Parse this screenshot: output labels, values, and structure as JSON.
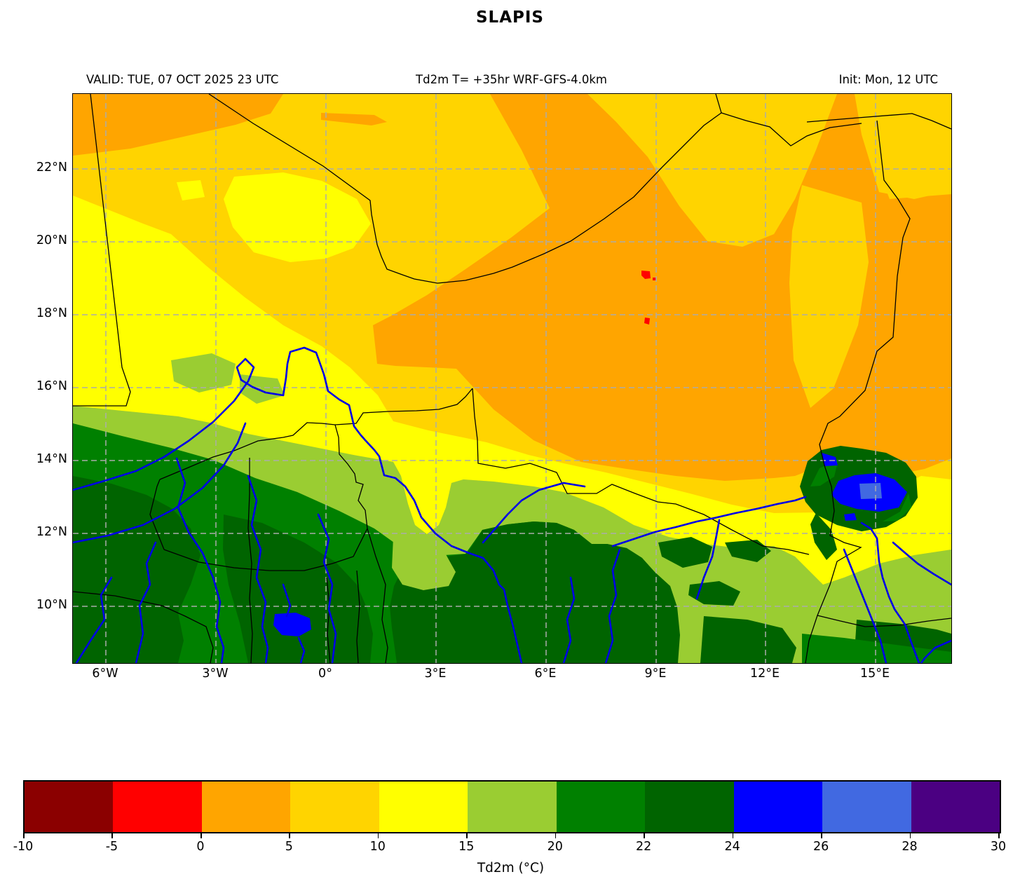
{
  "title": "SLAPIS",
  "header": {
    "valid": "VALID: TUE, 07 OCT 2025 23 UTC",
    "product": "Td2m T= +35hr WRF-GFS-4.0km",
    "init": "Init: Mon, 12 UTC"
  },
  "map": {
    "x_ticks": [
      "6°W",
      "3°W",
      "0°",
      "3°E",
      "6°E",
      "9°E",
      "12°E",
      "15°E"
    ],
    "y_ticks": [
      "22°N",
      "20°N",
      "18°N",
      "16°N",
      "14°N",
      "12°N",
      "10°N"
    ],
    "grid_color": "#ABABAB",
    "border_color": "#000000",
    "river_color": "#0000E6"
  },
  "colorbar": {
    "label": "Td2m (°C)",
    "tick_labels": [
      "-10",
      "-5",
      "0",
      "5",
      "10",
      "15",
      "20",
      "22",
      "24",
      "26",
      "28",
      "30"
    ],
    "segments": [
      {
        "from": -10,
        "to": -5,
        "color": "#8B0000"
      },
      {
        "from": -5,
        "to": 0,
        "color": "#FF0000"
      },
      {
        "from": 0,
        "to": 5,
        "color": "#FFA500"
      },
      {
        "from": 5,
        "to": 10,
        "color": "#FFD400"
      },
      {
        "from": 10,
        "to": 15,
        "color": "#FFFF00"
      },
      {
        "from": 15,
        "to": 20,
        "color": "#9ACD32"
      },
      {
        "from": 20,
        "to": 22,
        "color": "#008000"
      },
      {
        "from": 22,
        "to": 24,
        "color": "#006400"
      },
      {
        "from": 24,
        "to": 26,
        "color": "#0000FF"
      },
      {
        "from": 26,
        "to": 28,
        "color": "#4169E1"
      },
      {
        "from": 28,
        "to": 30,
        "color": "#4B0082"
      }
    ]
  },
  "chart_data": {
    "type": "heatmap",
    "subtype": "filled-contour dew point map",
    "title": "SLAPIS",
    "variable": "Td2m",
    "units": "°C",
    "model": "WRF-GFS-4.0km",
    "lead_time": "+35hr",
    "valid_time": "TUE, 07 OCT 2025 23 UTC",
    "init_time": "Mon, 12 UTC",
    "lon_extent": [
      "≈7°W",
      "≈17°E"
    ],
    "lat_extent": [
      "≈8.5°N",
      "≈24°N"
    ],
    "levels_c": [
      -10,
      -5,
      0,
      5,
      10,
      15,
      20,
      22,
      24,
      26,
      28,
      30
    ],
    "colorbar_ticks": [
      -10,
      -5,
      0,
      5,
      10,
      15,
      20,
      22,
      24,
      26,
      28,
      30
    ],
    "field_summary": [
      {
        "region": "Central/eastern Sahara (≈14–22°N east of 3°E) and NW top strip",
        "td2m_c": "0 to 5"
      },
      {
        "region": "Northwest desert band, NE wedge and band between orange and yellow",
        "td2m_c": "5 to 10"
      },
      {
        "region": "Western Sahel (≈13.5–17°N west of 3°E) and 13–14.5°N strip across east",
        "td2m_c": "10 to 15"
      },
      {
        "region": "Sahel belt ≈11.5–13.5°N and large southeastern area",
        "td2m_c": "15 to 20"
      },
      {
        "region": "Sudanian zone ≈9–12°N (south/southwest mosaic)",
        "td2m_c": "20 to 24"
      },
      {
        "region": "Lake Chad area (≈13.5–14.5°E, 12.5–13.5°N)",
        "td2m_c": "24 to 28"
      },
      {
        "region": "Two dry spots near 9°E, 19°N and 9°E, 17.8°N",
        "td2m_c": "-5 to 0"
      }
    ],
    "legend_position": "bottom horizontal colorbar",
    "grid": "dashed gray lat/lon grid every 3° lon / 2° lat"
  }
}
